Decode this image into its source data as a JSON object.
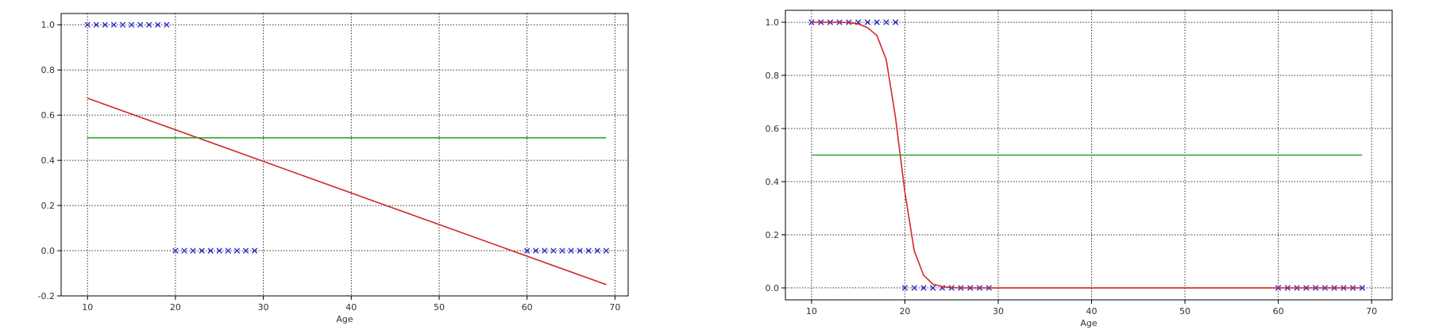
{
  "colors": {
    "marker": "#2323c8",
    "fit": "#d62728",
    "threshold": "#2ca02c",
    "grid": "#333333",
    "axis": "#000000"
  },
  "chart_data": [
    {
      "type": "line",
      "xlabel": "Age",
      "ylabel": "",
      "xlim": [
        7,
        71.5
      ],
      "ylim": [
        -0.2,
        1.05
      ],
      "xticks": [
        10,
        20,
        30,
        40,
        50,
        60,
        70
      ],
      "yticks": [
        -0.2,
        0.0,
        0.2,
        0.4,
        0.6,
        0.8,
        1.0
      ],
      "ytick_labels": [
        "-0.2",
        "0.0",
        "0.2",
        "0.4",
        "0.6",
        "0.8",
        "1.0"
      ],
      "grid": true,
      "series": [
        {
          "kind": "markers",
          "marker": "x",
          "color_key": "marker",
          "x": [
            10,
            11,
            12,
            13,
            14,
            15,
            16,
            17,
            18,
            19,
            20,
            21,
            22,
            23,
            24,
            25,
            26,
            27,
            28,
            29,
            60,
            61,
            62,
            63,
            64,
            65,
            66,
            67,
            68,
            69
          ],
          "y": [
            1,
            1,
            1,
            1,
            1,
            1,
            1,
            1,
            1,
            1,
            0,
            0,
            0,
            0,
            0,
            0,
            0,
            0,
            0,
            0,
            0,
            0,
            0,
            0,
            0,
            0,
            0,
            0,
            0,
            0
          ]
        },
        {
          "kind": "line",
          "color_key": "fit",
          "x": [
            10,
            69
          ],
          "y": [
            0.675,
            -0.15
          ]
        },
        {
          "kind": "line",
          "color_key": "threshold",
          "x": [
            10,
            69
          ],
          "y": [
            0.5,
            0.5
          ]
        }
      ]
    },
    {
      "type": "line",
      "xlabel": "Age",
      "ylabel": "",
      "xlim": [
        7.2,
        72.2
      ],
      "ylim": [
        -0.045,
        1.045
      ],
      "xticks": [
        10,
        20,
        30,
        40,
        50,
        60,
        70
      ],
      "yticks": [
        0.0,
        0.2,
        0.4,
        0.6,
        0.8,
        1.0
      ],
      "ytick_labels": [
        "0.0",
        "0.2",
        "0.4",
        "0.6",
        "0.8",
        "1.0"
      ],
      "grid": true,
      "series": [
        {
          "kind": "markers",
          "marker": "x",
          "color_key": "marker",
          "x": [
            10,
            11,
            12,
            13,
            14,
            15,
            16,
            17,
            18,
            19,
            20,
            21,
            22,
            23,
            24,
            25,
            26,
            27,
            28,
            29,
            60,
            61,
            62,
            63,
            64,
            65,
            66,
            67,
            68,
            69
          ],
          "y": [
            1,
            1,
            1,
            1,
            1,
            1,
            1,
            1,
            1,
            1,
            0,
            0,
            0,
            0,
            0,
            0,
            0,
            0,
            0,
            0,
            0,
            0,
            0,
            0,
            0,
            0,
            0,
            0,
            0,
            0
          ]
        },
        {
          "kind": "line",
          "color_key": "fit",
          "x": [
            10,
            11,
            12,
            13,
            14,
            15,
            16,
            17,
            18,
            19,
            20,
            21,
            22,
            23,
            24,
            25,
            26,
            27,
            28,
            29,
            60,
            61,
            62,
            63,
            64,
            65,
            66,
            67,
            68,
            69
          ],
          "y": [
            1.0,
            1.0,
            1.0,
            1.0,
            0.999,
            0.994,
            0.98,
            0.95,
            0.86,
            0.64,
            0.36,
            0.14,
            0.048,
            0.014,
            0.005,
            0.001,
            0.0,
            0.0,
            0.0,
            0.0,
            0.0,
            0.0,
            0.0,
            0.0,
            0.0,
            0.0,
            0.0,
            0.0,
            0.0,
            0.0
          ]
        },
        {
          "kind": "line",
          "color_key": "threshold",
          "x": [
            10,
            69
          ],
          "y": [
            0.5,
            0.5
          ]
        }
      ]
    }
  ]
}
